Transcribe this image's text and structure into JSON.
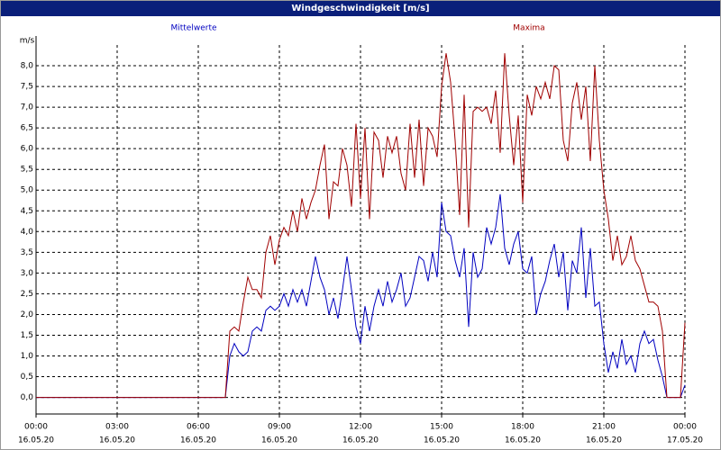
{
  "chart_data": {
    "type": "line",
    "title": "Windgeschwindigkeit [m/s]",
    "y_label": "m/s",
    "x": [
      0,
      420,
      430,
      440,
      450,
      460,
      470,
      480,
      490,
      500,
      510,
      520,
      530,
      540,
      550,
      560,
      570,
      580,
      590,
      600,
      610,
      620,
      630,
      640,
      650,
      660,
      670,
      680,
      690,
      700,
      710,
      720,
      730,
      740,
      750,
      760,
      770,
      780,
      790,
      800,
      810,
      820,
      830,
      840,
      850,
      860,
      870,
      880,
      890,
      900,
      910,
      920,
      930,
      940,
      950,
      960,
      970,
      980,
      990,
      1000,
      1010,
      1020,
      1030,
      1040,
      1050,
      1060,
      1070,
      1080,
      1090,
      1100,
      1110,
      1120,
      1130,
      1140,
      1150,
      1160,
      1170,
      1180,
      1190,
      1200,
      1210,
      1220,
      1230,
      1240,
      1250,
      1260,
      1270,
      1280,
      1290,
      1300,
      1310,
      1320,
      1330,
      1340,
      1350,
      1360,
      1370,
      1380,
      1390,
      1400,
      1410,
      1420,
      1430,
      1440
    ],
    "series": [
      {
        "name": "Mittelwerte",
        "color": "#0000c0",
        "values": [
          0,
          0,
          1.0,
          1.3,
          1.1,
          1.0,
          1.1,
          1.6,
          1.7,
          1.6,
          2.1,
          2.2,
          2.1,
          2.2,
          2.5,
          2.2,
          2.6,
          2.3,
          2.6,
          2.2,
          2.8,
          3.4,
          2.9,
          2.6,
          2.0,
          2.4,
          1.9,
          2.6,
          3.4,
          2.6,
          1.7,
          1.3,
          2.2,
          1.6,
          2.2,
          2.6,
          2.2,
          2.8,
          2.3,
          2.6,
          3.0,
          2.2,
          2.4,
          2.9,
          3.4,
          3.3,
          2.8,
          3.5,
          2.9,
          4.7,
          4.0,
          3.9,
          3.3,
          2.9,
          3.6,
          1.7,
          3.5,
          2.9,
          3.1,
          4.1,
          3.7,
          4.1,
          4.9,
          3.6,
          3.2,
          3.7,
          4.0,
          3.1,
          3.0,
          3.4,
          2.0,
          2.5,
          2.8,
          3.3,
          3.7,
          2.9,
          3.5,
          2.1,
          3.3,
          3.0,
          4.1,
          2.4,
          3.6,
          2.2,
          2.3,
          1.3,
          0.6,
          1.1,
          0.7,
          1.4,
          0.8,
          1.0,
          0.6,
          1.3,
          1.6,
          1.3,
          1.4,
          0.9,
          0.5,
          0,
          0,
          0,
          0,
          0.3
        ]
      },
      {
        "name": "Maxima",
        "color": "#a00000",
        "values": [
          0,
          0,
          1.6,
          1.7,
          1.6,
          2.3,
          2.9,
          2.6,
          2.6,
          2.4,
          3.5,
          3.9,
          3.2,
          3.8,
          4.1,
          3.9,
          4.5,
          4.0,
          4.8,
          4.3,
          4.7,
          5.0,
          5.6,
          6.1,
          4.3,
          5.2,
          5.1,
          6.0,
          5.6,
          4.6,
          6.6,
          4.8,
          6.5,
          4.3,
          6.4,
          6.2,
          5.3,
          6.3,
          5.9,
          6.3,
          5.4,
          5.0,
          6.6,
          5.3,
          6.7,
          5.1,
          6.5,
          6.3,
          5.8,
          7.5,
          8.3,
          7.6,
          6.2,
          4.4,
          7.3,
          4.1,
          6.9,
          7.0,
          6.9,
          7.0,
          6.6,
          7.4,
          5.9,
          8.3,
          6.8,
          5.6,
          6.8,
          4.7,
          7.3,
          6.8,
          7.5,
          7.2,
          7.6,
          7.2,
          8.0,
          7.9,
          6.2,
          5.7,
          7.1,
          7.6,
          6.7,
          7.5,
          5.7,
          8.0,
          6.2,
          5.0,
          4.3,
          3.3,
          3.9,
          3.2,
          3.4,
          3.9,
          3.3,
          3.1,
          2.7,
          2.3,
          2.3,
          2.2,
          1.6,
          0,
          0,
          0,
          0,
          1.8
        ]
      }
    ],
    "xlim": [
      0,
      1440
    ],
    "xticks": [
      {
        "value": 0,
        "label": [
          "00:00",
          "16.05.20"
        ]
      },
      {
        "value": 180,
        "label": [
          "03:00",
          "16.05.20"
        ]
      },
      {
        "value": 360,
        "label": [
          "06:00",
          "16.05.20"
        ]
      },
      {
        "value": 540,
        "label": [
          "09:00",
          "16.05.20"
        ]
      },
      {
        "value": 720,
        "label": [
          "12:00",
          "16.05.20"
        ]
      },
      {
        "value": 900,
        "label": [
          "15:00",
          "16.05.20"
        ]
      },
      {
        "value": 1080,
        "label": [
          "18:00",
          "16.05.20"
        ]
      },
      {
        "value": 1260,
        "label": [
          "21:00",
          "16.05.20"
        ]
      },
      {
        "value": 1440,
        "label": [
          "00:00",
          "17.05.20"
        ]
      }
    ],
    "ylim": [
      -0.4,
      8.5
    ],
    "yticks": [
      {
        "value": 0,
        "label": "0,0"
      },
      {
        "value": 0.5,
        "label": "0,5"
      },
      {
        "value": 1,
        "label": "1,0"
      },
      {
        "value": 1.5,
        "label": "1,5"
      },
      {
        "value": 2,
        "label": "2,0"
      },
      {
        "value": 2.5,
        "label": "2,5"
      },
      {
        "value": 3,
        "label": "3,0"
      },
      {
        "value": 3.5,
        "label": "3,5"
      },
      {
        "value": 4,
        "label": "4,0"
      },
      {
        "value": 4.5,
        "label": "4,5"
      },
      {
        "value": 5,
        "label": "5,0"
      },
      {
        "value": 5.5,
        "label": "5,5"
      },
      {
        "value": 6,
        "label": "6,0"
      },
      {
        "value": 6.5,
        "label": "6,5"
      },
      {
        "value": 7,
        "label": "7,0"
      },
      {
        "value": 7.5,
        "label": "7,5"
      },
      {
        "value": 8,
        "label": "8,0"
      }
    ],
    "grid": true
  }
}
